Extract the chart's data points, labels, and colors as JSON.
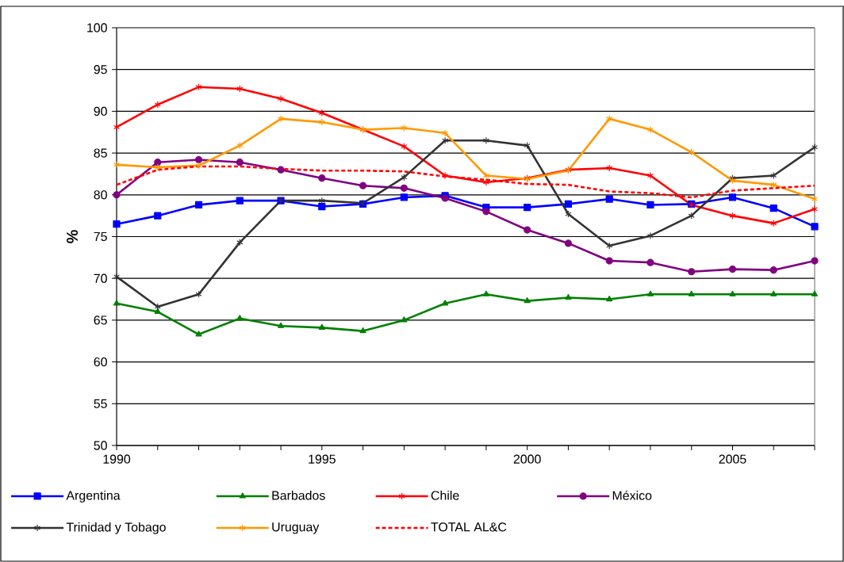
{
  "chart_data": {
    "type": "line",
    "ylabel": "%",
    "x": [
      1990,
      1991,
      1992,
      1993,
      1994,
      1995,
      1996,
      1997,
      1998,
      1999,
      2000,
      2001,
      2002,
      2003,
      2004,
      2005,
      2006,
      2007
    ],
    "xlim": [
      1990,
      2007
    ],
    "xticks": [
      1990,
      {
        "value": 1991,
        "label": null
      },
      {
        "value": 1992,
        "label": null
      },
      {
        "value": 1993,
        "label": null
      },
      {
        "value": 1994,
        "label": null
      },
      1995,
      {
        "value": 1996,
        "label": null
      },
      {
        "value": 1997,
        "label": null
      },
      {
        "value": 1998,
        "label": null
      },
      {
        "value": 1999,
        "label": null
      },
      2000,
      {
        "value": 2001,
        "label": null
      },
      {
        "value": 2002,
        "label": null
      },
      {
        "value": 2003,
        "label": null
      },
      {
        "value": 2004,
        "label": null
      },
      2005,
      {
        "value": 2006,
        "label": null
      },
      {
        "value": 2007,
        "label": null
      }
    ],
    "ylim": [
      50,
      100
    ],
    "yticks": [
      50,
      55,
      60,
      65,
      70,
      75,
      80,
      85,
      90,
      95,
      100
    ],
    "grid": "y",
    "legend": "bottom",
    "series": [
      {
        "name": "Argentina",
        "color": "#0000ff",
        "marker": "square",
        "values": [
          76.5,
          77.5,
          78.8,
          79.3,
          79.3,
          78.6,
          78.9,
          79.7,
          79.9,
          78.5,
          78.5,
          78.9,
          79.5,
          78.8,
          78.9,
          79.7,
          78.4,
          76.2
        ]
      },
      {
        "name": "Barbados",
        "color": "#008000",
        "marker": "triangle",
        "values": [
          67,
          66,
          63.3,
          65.2,
          64.3,
          64.1,
          63.7,
          65,
          67,
          68.1,
          67.3,
          67.7,
          67.5,
          68.1,
          68.1,
          68.1,
          68.1,
          68.1
        ]
      },
      {
        "name": "Chile",
        "color": "#ff0000",
        "marker": "cross",
        "values": [
          88.1,
          90.8,
          92.9,
          92.7,
          91.5,
          89.8,
          87.8,
          85.8,
          82.3,
          81.5,
          82,
          83,
          83.2,
          82.3,
          78.8,
          77.5,
          76.6,
          78.3
        ]
      },
      {
        "name": "México",
        "color": "#800080",
        "marker": "circle",
        "values": [
          80,
          83.9,
          84.2,
          83.9,
          83,
          82,
          81.1,
          80.8,
          79.6,
          78,
          75.8,
          74.2,
          72.1,
          71.9,
          70.8,
          71.1,
          71,
          72.1
        ]
      },
      {
        "name": "Trinidad y Tobago",
        "color": "#333333",
        "marker": "cross",
        "values": [
          70.2,
          66.6,
          68.1,
          74.3,
          79.3,
          79.3,
          79,
          82.1,
          86.5,
          86.5,
          85.9,
          77.7,
          73.9,
          75.1,
          77.5,
          82,
          82.3,
          85.7
        ]
      },
      {
        "name": "Uruguay",
        "color": "#ff9900",
        "marker": "cross",
        "values": [
          83.6,
          83.3,
          83.5,
          85.9,
          89.1,
          88.7,
          87.8,
          88,
          87.4,
          82.3,
          81.9,
          82.9,
          89.1,
          87.8,
          85.1,
          81.7,
          81.2,
          79.5
        ]
      },
      {
        "name": "TOTAL AL&C",
        "color": "#ff0000",
        "marker": "none",
        "line_style": "dashed",
        "values": [
          81.2,
          83,
          83.4,
          83.4,
          83.1,
          82.9,
          82.9,
          82.8,
          82.2,
          81.8,
          81.3,
          81.2,
          80.4,
          80.2,
          79.7,
          80.5,
          80.8,
          81.1
        ]
      }
    ]
  }
}
